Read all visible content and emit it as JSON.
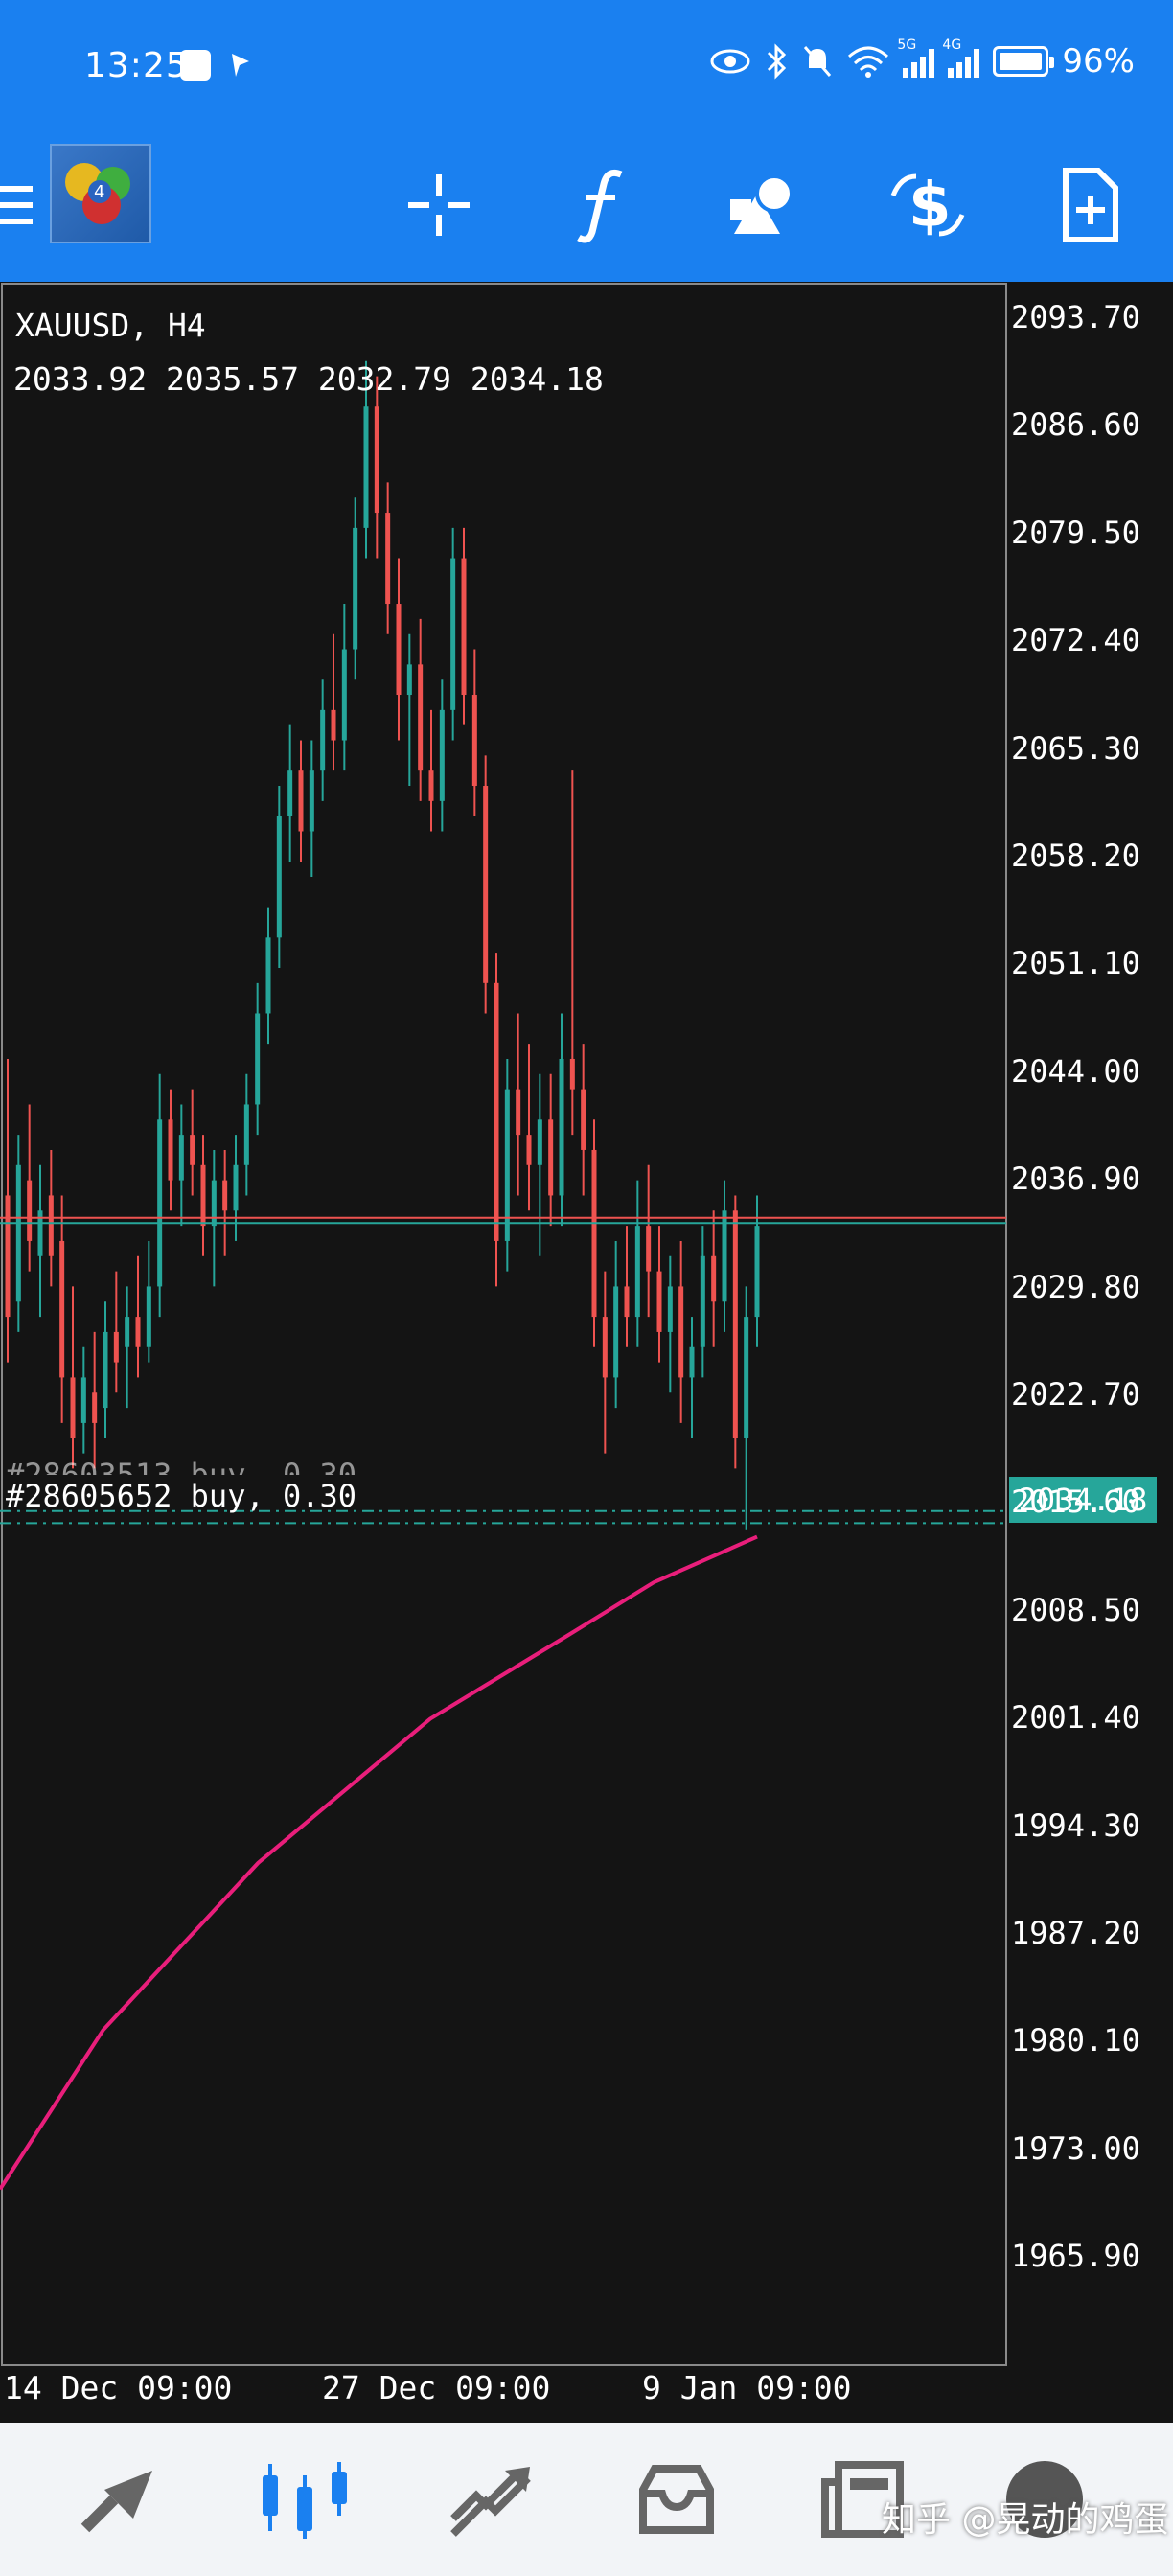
{
  "status_bar": {
    "time": "13:25",
    "network_5g": "5G",
    "network_4g": "4G",
    "battery": "96%",
    "icons": [
      "eye-icon",
      "bluetooth-icon",
      "mute-icon",
      "wifi-icon",
      "signal-icon",
      "battery-icon"
    ]
  },
  "toolbar": {
    "menu_icon": "hamburger-menu-icon",
    "logo": "metatrader-logo",
    "actions": [
      "crosshair-icon",
      "indicator-f-icon",
      "objects-icon",
      "trade-dollar-icon",
      "new-document-icon"
    ]
  },
  "chart": {
    "symbol": "XAUUSD, H4",
    "ohlc": "2033.92 2035.57 2032.79 2034.18",
    "current_price": "2034.18",
    "order_label_1": "#28605652 buy, 0.30",
    "order_label_2": "#28603513 buy, 0.30",
    "y_ticks": [
      "2093.70",
      "2086.60",
      "2079.50",
      "2072.40",
      "2065.30",
      "2058.20",
      "2051.10",
      "2044.00",
      "2036.90",
      "2029.80",
      "2022.70",
      "2015.60",
      "2008.50",
      "2001.40",
      "1994.30",
      "1987.20",
      "1980.10",
      "1973.00",
      "1965.90"
    ],
    "x_ticks": [
      "14 Dec 09:00",
      "27 Dec 09:00",
      "9 Jan 09:00"
    ],
    "colors": {
      "bull": "#26a69a",
      "bear": "#ef5350",
      "ma": "#e91e7b",
      "grid": "#141414"
    }
  },
  "chart_data": {
    "type": "candlestick",
    "title": "XAUUSD, H4",
    "ylim": [
      1960,
      2098
    ],
    "last": {
      "open": 2033.92,
      "high": 2035.57,
      "low": 2032.79,
      "close": 2034.18
    },
    "orders": [
      {
        "price": 2015.2,
        "side": "buy",
        "lots": 0.3
      },
      {
        "price": 2014.4,
        "side": "buy",
        "lots": 0.3
      }
    ],
    "moving_average": [
      [
        0,
        1970.5
      ],
      [
        60,
        1981
      ],
      [
        150,
        1992
      ],
      [
        250,
        2001.5
      ],
      [
        330,
        2007
      ],
      [
        380,
        2010.5
      ],
      [
        440,
        2013.5
      ]
    ],
    "candles": [
      [
        2036,
        2045,
        2025,
        2028
      ],
      [
        2029,
        2040,
        2027,
        2038
      ],
      [
        2037,
        2042,
        2031,
        2033
      ],
      [
        2032,
        2038,
        2028,
        2035
      ],
      [
        2036,
        2039,
        2030,
        2032
      ],
      [
        2033,
        2036,
        2021,
        2024
      ],
      [
        2024,
        2030,
        2018,
        2020
      ],
      [
        2021,
        2026,
        2019,
        2024
      ],
      [
        2023,
        2027,
        2018,
        2021
      ],
      [
        2022,
        2029,
        2020,
        2027
      ],
      [
        2027,
        2031,
        2023,
        2025
      ],
      [
        2026,
        2030,
        2022,
        2028
      ],
      [
        2028,
        2032,
        2024,
        2026
      ],
      [
        2026,
        2033,
        2025,
        2030
      ],
      [
        2030,
        2044,
        2028,
        2041
      ],
      [
        2041,
        2043,
        2035,
        2037
      ],
      [
        2037,
        2042,
        2034,
        2040
      ],
      [
        2040,
        2043,
        2036,
        2038
      ],
      [
        2038,
        2040,
        2032,
        2034
      ],
      [
        2034,
        2039,
        2030,
        2037
      ],
      [
        2037,
        2039,
        2032,
        2035
      ],
      [
        2035,
        2040,
        2033,
        2038
      ],
      [
        2038,
        2044,
        2036,
        2042
      ],
      [
        2042,
        2050,
        2040,
        2048
      ],
      [
        2048,
        2055,
        2046,
        2053
      ],
      [
        2053,
        2063,
        2051,
        2061
      ],
      [
        2061,
        2067,
        2058,
        2064
      ],
      [
        2064,
        2066,
        2058,
        2060
      ],
      [
        2060,
        2066,
        2057,
        2064
      ],
      [
        2064,
        2070,
        2062,
        2068
      ],
      [
        2068,
        2073,
        2064,
        2066
      ],
      [
        2066,
        2075,
        2064,
        2072
      ],
      [
        2072,
        2082,
        2070,
        2080
      ],
      [
        2080,
        2091,
        2078,
        2088
      ],
      [
        2088,
        2090,
        2078,
        2081
      ],
      [
        2081,
        2083,
        2073,
        2075
      ],
      [
        2075,
        2078,
        2066,
        2069
      ],
      [
        2069,
        2073,
        2063,
        2071
      ],
      [
        2071,
        2074,
        2062,
        2064
      ],
      [
        2064,
        2068,
        2060,
        2062
      ],
      [
        2062,
        2070,
        2060,
        2068
      ],
      [
        2068,
        2080,
        2066,
        2078
      ],
      [
        2078,
        2080,
        2067,
        2069
      ],
      [
        2069,
        2072,
        2061,
        2063
      ],
      [
        2063,
        2065,
        2048,
        2050
      ],
      [
        2050,
        2052,
        2030,
        2033
      ],
      [
        2033,
        2045,
        2031,
        2043
      ],
      [
        2043,
        2048,
        2036,
        2040
      ],
      [
        2040,
        2046,
        2035,
        2038
      ],
      [
        2038,
        2044,
        2032,
        2041
      ],
      [
        2041,
        2044,
        2034,
        2036
      ],
      [
        2036,
        2048,
        2034,
        2045
      ],
      [
        2045,
        2064,
        2040,
        2043
      ],
      [
        2043,
        2046,
        2036,
        2039
      ],
      [
        2039,
        2041,
        2026,
        2028
      ],
      [
        2028,
        2031,
        2019,
        2024
      ],
      [
        2024,
        2033,
        2022,
        2030
      ],
      [
        2030,
        2034,
        2026,
        2028
      ],
      [
        2028,
        2037,
        2026,
        2034
      ],
      [
        2034,
        2038,
        2028,
        2031
      ],
      [
        2031,
        2034,
        2025,
        2027
      ],
      [
        2027,
        2032,
        2023,
        2030
      ],
      [
        2030,
        2033,
        2021,
        2024
      ],
      [
        2024,
        2028,
        2020,
        2026
      ],
      [
        2026,
        2034,
        2024,
        2032
      ],
      [
        2032,
        2035,
        2026,
        2029
      ],
      [
        2029,
        2037,
        2027,
        2035
      ],
      [
        2035,
        2036,
        2018,
        2020
      ],
      [
        2020,
        2030,
        2014,
        2028
      ],
      [
        2028,
        2036,
        2026,
        2034
      ]
    ]
  },
  "bottom_nav": {
    "items": [
      "quotes-icon",
      "chart-icon",
      "trade-icon",
      "history-icon",
      "news-icon",
      "settings-icon"
    ],
    "watermark": "知乎 @晃动的鸡蛋"
  }
}
